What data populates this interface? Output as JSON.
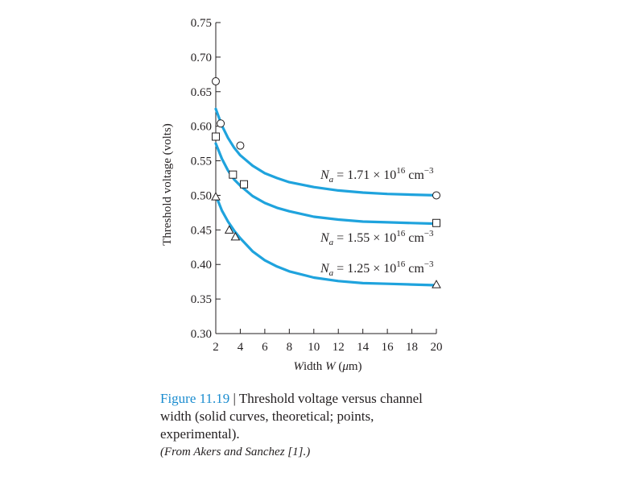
{
  "chart_data": {
    "type": "line",
    "xlabel": "Width W (μm)",
    "ylabel": "Threshold voltage (volts)",
    "xlim": [
      2,
      20
    ],
    "ylim": [
      0.3,
      0.75
    ],
    "x_ticks": [
      2,
      4,
      6,
      8,
      10,
      12,
      14,
      16,
      18,
      20
    ],
    "x_tick_labels": [
      "2",
      "4",
      "6",
      "8",
      "10",
      "12",
      "14",
      "16",
      "18",
      "20"
    ],
    "y_ticks": [
      0.3,
      0.35,
      0.4,
      0.45,
      0.5,
      0.55,
      0.6,
      0.65,
      0.7,
      0.75
    ],
    "y_tick_labels": [
      "0.30",
      "0.35",
      "0.40",
      "0.45",
      "0.50",
      "0.55",
      "0.60",
      "0.65",
      "0.70",
      "0.75"
    ],
    "grid": false,
    "curve_color": "#1fa3dd",
    "series": [
      {
        "label": {
          "prefix": "N",
          "sub": "a",
          "mid": " = 1.71 × 10",
          "sup": "16",
          "unit": " cm",
          "unit_sup": "−3"
        },
        "marker": "circle",
        "theoretical": {
          "x": [
            2.0,
            2.5,
            3.0,
            3.5,
            4.0,
            5.0,
            6.0,
            7.0,
            8.0,
            10.0,
            12.0,
            14.0,
            16.0,
            18.0,
            20.0
          ],
          "y": [
            0.625,
            0.601,
            0.583,
            0.569,
            0.558,
            0.543,
            0.532,
            0.525,
            0.519,
            0.512,
            0.507,
            0.504,
            0.502,
            0.501,
            0.5
          ]
        },
        "experimental": {
          "x": [
            2.0,
            2.4,
            4.0,
            20.0
          ],
          "y": [
            0.665,
            0.604,
            0.572,
            0.5
          ]
        }
      },
      {
        "label": {
          "prefix": "N",
          "sub": "a",
          "mid": " = 1.55 × 10",
          "sup": "16",
          "unit": " cm",
          "unit_sup": "−3"
        },
        "marker": "square",
        "theoretical": {
          "x": [
            2.0,
            2.5,
            3.0,
            3.5,
            4.0,
            5.0,
            6.0,
            7.0,
            8.0,
            10.0,
            12.0,
            14.0,
            16.0,
            18.0,
            20.0
          ],
          "y": [
            0.575,
            0.553,
            0.536,
            0.523,
            0.514,
            0.499,
            0.489,
            0.482,
            0.477,
            0.469,
            0.465,
            0.462,
            0.461,
            0.46,
            0.459
          ]
        },
        "experimental": {
          "x": [
            2.0,
            3.4,
            4.3,
            20.0
          ],
          "y": [
            0.585,
            0.53,
            0.516,
            0.46
          ]
        }
      },
      {
        "label": {
          "prefix": "N",
          "sub": "a",
          "mid": " = 1.25 × 10",
          "sup": "16",
          "unit": " cm",
          "unit_sup": "−3"
        },
        "marker": "triangle",
        "theoretical": {
          "x": [
            2.0,
            2.5,
            3.0,
            3.5,
            4.0,
            5.0,
            6.0,
            7.0,
            8.0,
            10.0,
            12.0,
            14.0,
            16.0,
            18.0,
            20.0
          ],
          "y": [
            0.5,
            0.478,
            0.462,
            0.449,
            0.438,
            0.419,
            0.406,
            0.397,
            0.39,
            0.381,
            0.376,
            0.373,
            0.372,
            0.371,
            0.37
          ]
        },
        "experimental": {
          "x": [
            2.0,
            3.1,
            3.6,
            20.0
          ],
          "y": [
            0.498,
            0.45,
            0.44,
            0.371
          ]
        }
      }
    ]
  },
  "caption": {
    "figure_label": "Figure 11.19",
    "separator": " | ",
    "text": "Threshold voltage versus channel width (solid curves, theoretical; points, experimental).",
    "source": "(From Akers and Sanchez [1].)"
  }
}
